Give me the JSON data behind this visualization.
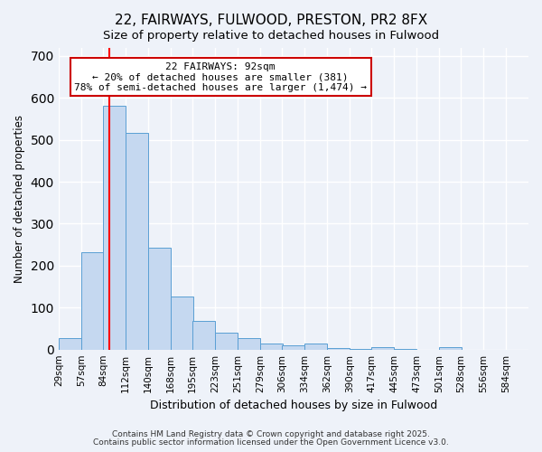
{
  "title": "22, FAIRWAYS, FULWOOD, PRESTON, PR2 8FX",
  "subtitle": "Size of property relative to detached houses in Fulwood",
  "xlabel": "Distribution of detached houses by size in Fulwood",
  "ylabel": "Number of detached properties",
  "bar_values": [
    28,
    233,
    580,
    517,
    242,
    127,
    68,
    40,
    27,
    14,
    10,
    14,
    4,
    2,
    5,
    2,
    0,
    5,
    0,
    0
  ],
  "bin_labels": [
    "29sqm",
    "57sqm",
    "84sqm",
    "112sqm",
    "140sqm",
    "168sqm",
    "195sqm",
    "223sqm",
    "251sqm",
    "279sqm",
    "306sqm",
    "334sqm",
    "362sqm",
    "390sqm",
    "417sqm",
    "445sqm",
    "473sqm",
    "501sqm",
    "528sqm",
    "556sqm",
    "584sqm"
  ],
  "bar_color": "#c5d8f0",
  "bar_edge_color": "#5a9fd4",
  "red_line_x": 92,
  "bin_edges": [
    29,
    57,
    84,
    112,
    140,
    168,
    195,
    223,
    251,
    279,
    306,
    334,
    362,
    390,
    417,
    445,
    473,
    501,
    528,
    556,
    584
  ],
  "annotation_title": "22 FAIRWAYS: 92sqm",
  "annotation_line1": "← 20% of detached houses are smaller (381)",
  "annotation_line2": "78% of semi-detached houses are larger (1,474) →",
  "ylim": [
    0,
    720
  ],
  "yticks": [
    0,
    100,
    200,
    300,
    400,
    500,
    600,
    700
  ],
  "footer1": "Contains HM Land Registry data © Crown copyright and database right 2025.",
  "footer2": "Contains public sector information licensed under the Open Government Licence v3.0.",
  "bg_color": "#eef2f9"
}
